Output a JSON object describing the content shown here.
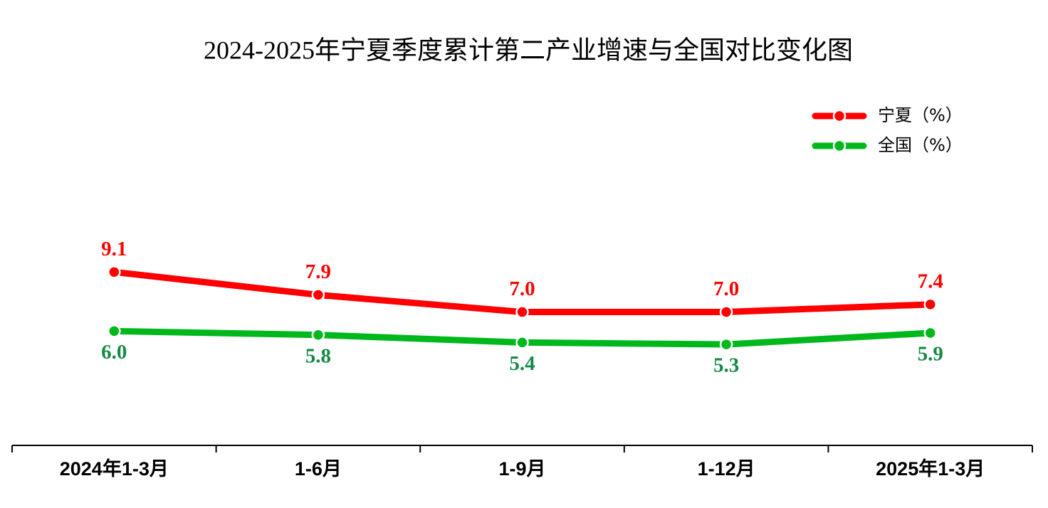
{
  "chart_data": {
    "type": "line",
    "title": "2024-2025年宁夏季度累计第二产业增速与全国对比变化图",
    "categories": [
      "2024年1-3月",
      "1-6月",
      "1-9月",
      "1-12月",
      "2025年1-3月"
    ],
    "series": [
      {
        "name": "宁夏（%）",
        "color": "#ff0000",
        "label_color": "#ff0000",
        "label_position": "above",
        "values": [
          9.1,
          7.9,
          7.0,
          7.0,
          7.4
        ],
        "value_labels": [
          "9.1",
          "7.9",
          "7.0",
          "7.0",
          "7.4"
        ]
      },
      {
        "name": "全国（%）",
        "color": "#00b81c",
        "label_color": "#158a45",
        "label_position": "below",
        "values": [
          6.0,
          5.8,
          5.4,
          5.3,
          5.9
        ],
        "value_labels": [
          "6.0",
          "5.8",
          "5.4",
          "5.3",
          "5.9"
        ]
      }
    ],
    "ylim": [
      0,
      18
    ],
    "legend": "top-right"
  }
}
